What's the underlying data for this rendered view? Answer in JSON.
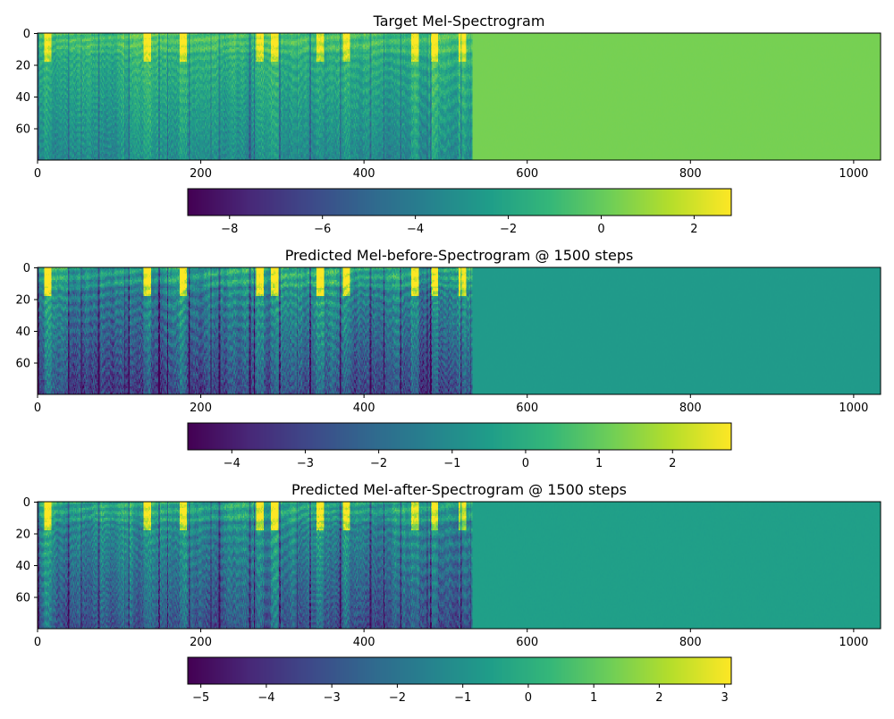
{
  "chart_data": [
    {
      "type": "heatmap",
      "title": "Target Mel-Spectrogram",
      "xlabel": "",
      "ylabel": "",
      "xlim": [
        0,
        1033
      ],
      "ylim": [
        80,
        0
      ],
      "xticks": [
        "0",
        "200",
        "400",
        "600",
        "800",
        "1000"
      ],
      "yticks": [
        "0",
        "20",
        "40",
        "60"
      ],
      "speech_end_frame": 533,
      "fill_value": 0.35,
      "colorbar": {
        "vmin": -8.9,
        "vmax": 2.8,
        "ticks": [
          "−8",
          "−6",
          "−4",
          "−2",
          "0",
          "2"
        ]
      },
      "colormap": "viridis",
      "seed": 17
    },
    {
      "type": "heatmap",
      "title": "Predicted Mel-before-Spectrogram @ 1500 steps",
      "xlabel": "",
      "ylabel": "",
      "xlim": [
        0,
        1033
      ],
      "ylim": [
        80,
        0
      ],
      "xticks": [
        "0",
        "200",
        "400",
        "600",
        "800",
        "1000"
      ],
      "yticks": [
        "0",
        "20",
        "40",
        "60"
      ],
      "speech_end_frame": 533,
      "fill_value": -0.6,
      "colorbar": {
        "vmin": -4.6,
        "vmax": 2.8,
        "ticks": [
          "−4",
          "−3",
          "−2",
          "−1",
          "0",
          "1",
          "2"
        ]
      },
      "colormap": "viridis",
      "seed": 41
    },
    {
      "type": "heatmap",
      "title": "Predicted Mel-after-Spectrogram @ 1500 steps",
      "xlabel": "",
      "ylabel": "",
      "xlim": [
        0,
        1033
      ],
      "ylim": [
        80,
        0
      ],
      "xticks": [
        "0",
        "200",
        "400",
        "600",
        "800",
        "1000"
      ],
      "yticks": [
        "0",
        "20",
        "40",
        "60"
      ],
      "speech_end_frame": 533,
      "fill_value": -0.55,
      "colorbar": {
        "vmin": -5.2,
        "vmax": 3.1,
        "ticks": [
          "−5",
          "−4",
          "−3",
          "−2",
          "−1",
          "0",
          "1",
          "2",
          "3"
        ]
      },
      "colormap": "viridis",
      "seed": 73
    }
  ]
}
